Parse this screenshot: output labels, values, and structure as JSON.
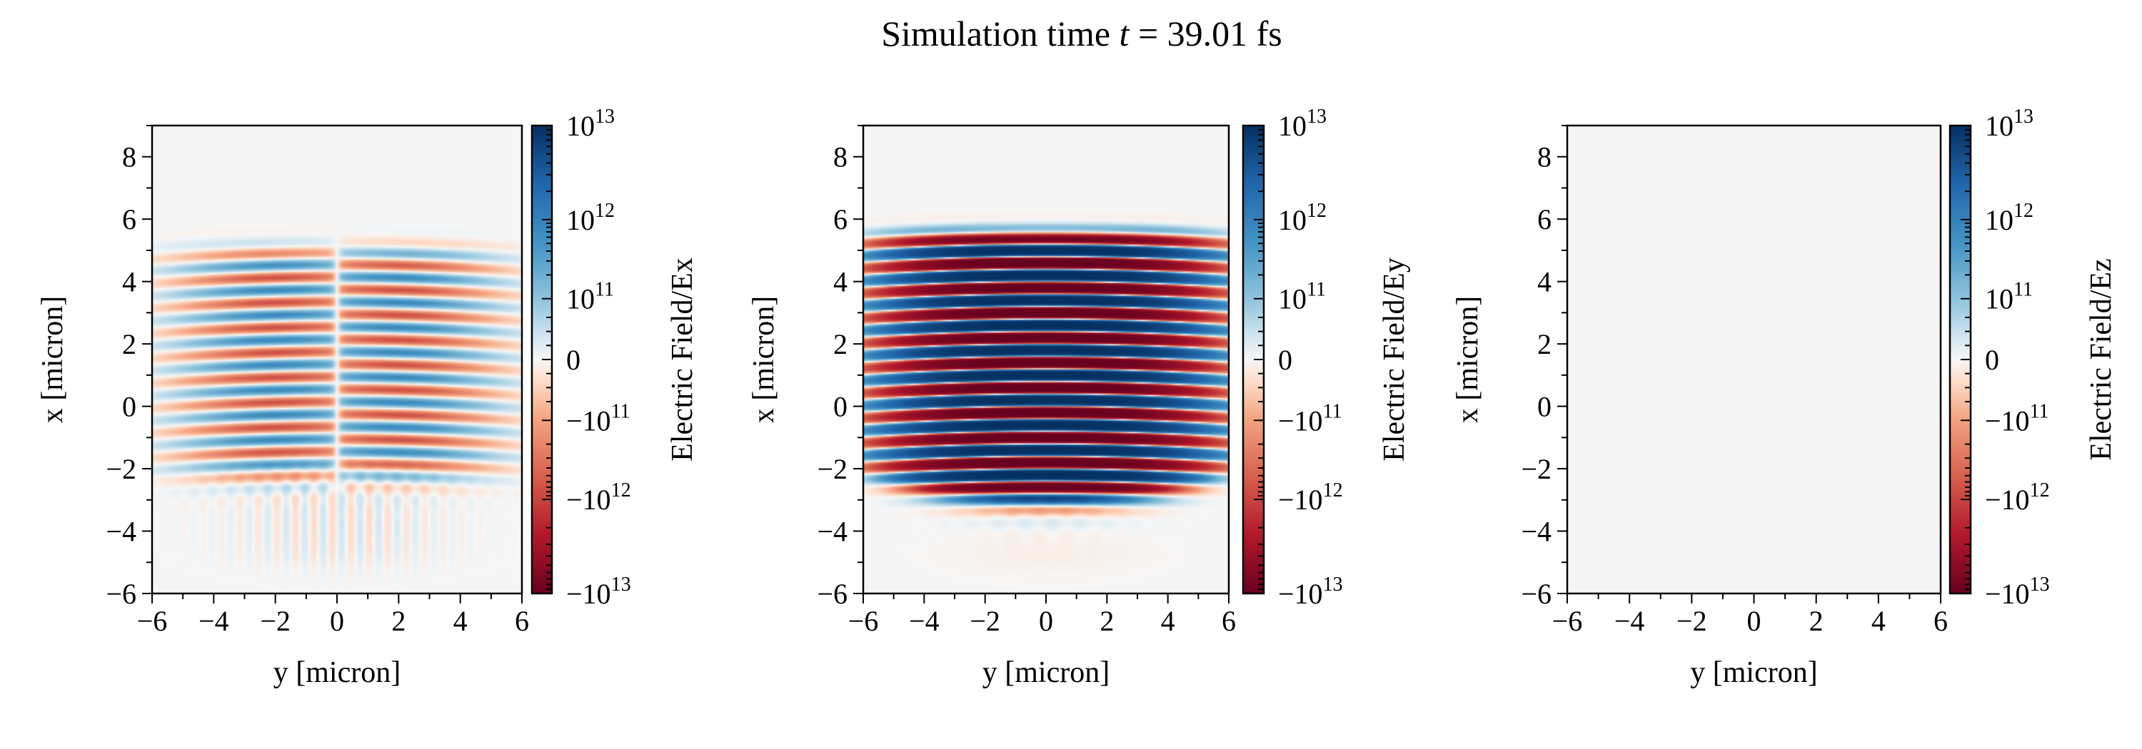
{
  "title": {
    "prefix": "Simulation time ",
    "variable": "t",
    "suffix": " = 39.01 fs"
  },
  "chart_data": [
    {
      "type": "heatmap",
      "xlabel": "y [micron]",
      "ylabel": "x [micron]",
      "xlim": [
        -6,
        6
      ],
      "ylim": [
        -6,
        9
      ],
      "xticks": [
        "−6",
        "−4",
        "−2",
        "0",
        "2",
        "4",
        "6"
      ],
      "yticks": [
        "−6",
        "−4",
        "−2",
        "0",
        "2",
        "4",
        "6",
        "8"
      ],
      "colorbar": {
        "label": "Electric Field/Ex",
        "scale": "symlog",
        "range": [
          -10000000000000.0,
          10000000000000.0
        ],
        "colormap": "RdBu_r",
        "ticks": [
          {
            "value": 10000000000000.0,
            "sign": "",
            "base": "10",
            "exp": "13"
          },
          {
            "value": 1000000000000.0,
            "sign": "",
            "base": "10",
            "exp": "12"
          },
          {
            "value": 100000000000.0,
            "sign": "",
            "base": "10",
            "exp": "11"
          },
          {
            "value": 0,
            "sign": "",
            "base": "0",
            "exp": ""
          },
          {
            "value": -100000000000.0,
            "sign": "−",
            "base": "10",
            "exp": "11"
          },
          {
            "value": -1000000000000.0,
            "sign": "−",
            "base": "10",
            "exp": "12"
          },
          {
            "value": -10000000000000.0,
            "sign": "−",
            "base": "10",
            "exp": "13"
          }
        ]
      },
      "field": "Ex",
      "description_of_pattern": "horizontal alternating bands, antisymmetric about y=0, moderate amplitude"
    },
    {
      "type": "heatmap",
      "xlabel": "y [micron]",
      "ylabel": "x [micron]",
      "xlim": [
        -6,
        6
      ],
      "ylim": [
        -6,
        9
      ],
      "xticks": [
        "−6",
        "−4",
        "−2",
        "0",
        "2",
        "4",
        "6"
      ],
      "yticks": [
        "−6",
        "−4",
        "−2",
        "0",
        "2",
        "4",
        "6",
        "8"
      ],
      "colorbar": {
        "label": "Electric Field/Ey",
        "scale": "symlog",
        "range": [
          -10000000000000.0,
          10000000000000.0
        ],
        "colormap": "RdBu_r",
        "ticks": [
          {
            "value": 10000000000000.0,
            "sign": "",
            "base": "10",
            "exp": "13"
          },
          {
            "value": 1000000000000.0,
            "sign": "",
            "base": "10",
            "exp": "12"
          },
          {
            "value": 100000000000.0,
            "sign": "",
            "base": "10",
            "exp": "11"
          },
          {
            "value": 0,
            "sign": "",
            "base": "0",
            "exp": ""
          },
          {
            "value": -100000000000.0,
            "sign": "−",
            "base": "10",
            "exp": "11"
          },
          {
            "value": -1000000000000.0,
            "sign": "−",
            "base": "10",
            "exp": "12"
          },
          {
            "value": -10000000000000.0,
            "sign": "−",
            "base": "10",
            "exp": "13"
          }
        ]
      },
      "field": "Ey",
      "description_of_pattern": "strong alternating horizontal bands between x≈-3 and x≈5.5, saturated near center"
    },
    {
      "type": "heatmap",
      "xlabel": "y [micron]",
      "ylabel": "x [micron]",
      "xlim": [
        -6,
        6
      ],
      "ylim": [
        -6,
        9
      ],
      "xticks": [
        "−6",
        "−4",
        "−2",
        "0",
        "2",
        "4",
        "6"
      ],
      "yticks": [
        "−6",
        "−4",
        "−2",
        "0",
        "2",
        "4",
        "6",
        "8"
      ],
      "colorbar": {
        "label": "Electric Field/Ez",
        "scale": "symlog",
        "range": [
          -10000000000000.0,
          10000000000000.0
        ],
        "colormap": "RdBu_r",
        "ticks": [
          {
            "value": 10000000000000.0,
            "sign": "",
            "base": "10",
            "exp": "13"
          },
          {
            "value": 1000000000000.0,
            "sign": "",
            "base": "10",
            "exp": "12"
          },
          {
            "value": 100000000000.0,
            "sign": "",
            "base": "10",
            "exp": "11"
          },
          {
            "value": 0,
            "sign": "",
            "base": "0",
            "exp": ""
          },
          {
            "value": -100000000000.0,
            "sign": "−",
            "base": "10",
            "exp": "11"
          },
          {
            "value": -1000000000000.0,
            "sign": "−",
            "base": "10",
            "exp": "12"
          },
          {
            "value": -10000000000000.0,
            "sign": "−",
            "base": "10",
            "exp": "13"
          }
        ]
      },
      "field": "Ez",
      "description_of_pattern": "uniformly zero"
    }
  ],
  "colors": {
    "rdbu_r": [
      "#67001f",
      "#b2182b",
      "#d6604d",
      "#f4a582",
      "#fddbc7",
      "#f7f7f7",
      "#d1e5f0",
      "#92c5de",
      "#4393c3",
      "#2166ac",
      "#053061"
    ]
  }
}
